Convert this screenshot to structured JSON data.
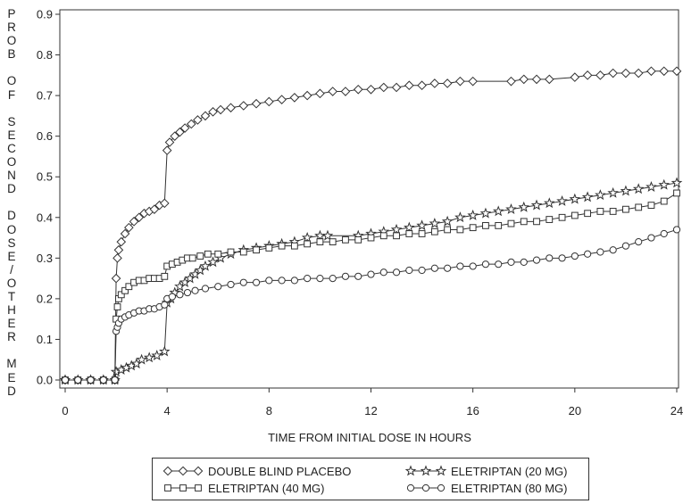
{
  "chart_data": {
    "type": "line",
    "title": "",
    "xlabel": "TIME FROM INITIAL DOSE IN HOURS",
    "ylabel": "PROB OF SECOND DOSE/OTHER MED",
    "ylabel_letters": [
      "P",
      "R",
      "O",
      "B",
      "",
      "O",
      "F",
      "",
      "S",
      "E",
      "C",
      "O",
      "N",
      "D",
      "",
      "D",
      "O",
      "S",
      "E",
      "/",
      "O",
      "T",
      "H",
      "E",
      "R",
      "",
      "M",
      "E",
      "D"
    ],
    "xlim": [
      0,
      24
    ],
    "ylim": [
      0,
      0.9
    ],
    "xticks": [
      0,
      4,
      8,
      12,
      16,
      20,
      24
    ],
    "yticks": [
      0.0,
      0.1,
      0.2,
      0.3,
      0.4,
      0.5,
      0.6,
      0.7,
      0.8,
      0.9
    ],
    "ytick_labels": [
      "0.0",
      "0.1",
      "0.2",
      "0.3",
      "0.4",
      "0.5",
      "0.6",
      "0.7",
      "0.8",
      "0.9"
    ],
    "grid": false,
    "legend_position": "bottom",
    "series": [
      {
        "name": "DOUBLE BLIND PLACEBO",
        "marker": "diamond",
        "points": [
          [
            0,
            0.0
          ],
          [
            0.5,
            0.0
          ],
          [
            1.0,
            0.0
          ],
          [
            1.5,
            0.0
          ],
          [
            1.95,
            0.0
          ],
          [
            2.0,
            0.25
          ],
          [
            2.05,
            0.3
          ],
          [
            2.1,
            0.32
          ],
          [
            2.2,
            0.34
          ],
          [
            2.35,
            0.36
          ],
          [
            2.5,
            0.375
          ],
          [
            2.7,
            0.39
          ],
          [
            2.9,
            0.4
          ],
          [
            3.1,
            0.41
          ],
          [
            3.3,
            0.415
          ],
          [
            3.5,
            0.42
          ],
          [
            3.7,
            0.43
          ],
          [
            3.9,
            0.435
          ],
          [
            4.0,
            0.565
          ],
          [
            4.1,
            0.585
          ],
          [
            4.3,
            0.6
          ],
          [
            4.5,
            0.61
          ],
          [
            4.7,
            0.62
          ],
          [
            4.95,
            0.63
          ],
          [
            5.2,
            0.64
          ],
          [
            5.5,
            0.65
          ],
          [
            5.8,
            0.66
          ],
          [
            6.1,
            0.665
          ],
          [
            6.5,
            0.67
          ],
          [
            7.0,
            0.675
          ],
          [
            7.5,
            0.68
          ],
          [
            8.0,
            0.685
          ],
          [
            8.5,
            0.69
          ],
          [
            9.0,
            0.695
          ],
          [
            9.5,
            0.7
          ],
          [
            10.0,
            0.705
          ],
          [
            10.5,
            0.71
          ],
          [
            11.0,
            0.71
          ],
          [
            11.5,
            0.715
          ],
          [
            12.0,
            0.715
          ],
          [
            12.5,
            0.72
          ],
          [
            13.0,
            0.72
          ],
          [
            13.5,
            0.725
          ],
          [
            14.0,
            0.725
          ],
          [
            14.5,
            0.73
          ],
          [
            15.0,
            0.73
          ],
          [
            15.5,
            0.735
          ],
          [
            16.0,
            0.735
          ],
          [
            17.5,
            0.735
          ],
          [
            18.0,
            0.74
          ],
          [
            18.5,
            0.74
          ],
          [
            19.0,
            0.74
          ],
          [
            20.0,
            0.745
          ],
          [
            20.5,
            0.75
          ],
          [
            21.0,
            0.75
          ],
          [
            21.5,
            0.755
          ],
          [
            22.0,
            0.755
          ],
          [
            22.5,
            0.755
          ],
          [
            23.0,
            0.76
          ],
          [
            23.5,
            0.76
          ],
          [
            24.0,
            0.76
          ]
        ]
      },
      {
        "name": "ELETRIPTAN (20 MG)",
        "marker": "star",
        "points": [
          [
            0,
            0.0
          ],
          [
            0.5,
            0.0
          ],
          [
            1.0,
            0.0
          ],
          [
            1.5,
            0.0
          ],
          [
            1.95,
            0.0
          ],
          [
            2.0,
            0.02
          ],
          [
            2.2,
            0.025
          ],
          [
            2.4,
            0.03
          ],
          [
            2.6,
            0.035
          ],
          [
            2.8,
            0.04
          ],
          [
            3.0,
            0.05
          ],
          [
            3.3,
            0.055
          ],
          [
            3.6,
            0.06
          ],
          [
            3.9,
            0.07
          ],
          [
            4.0,
            0.19
          ],
          [
            4.15,
            0.2
          ],
          [
            4.3,
            0.215
          ],
          [
            4.5,
            0.23
          ],
          [
            4.7,
            0.24
          ],
          [
            4.9,
            0.25
          ],
          [
            5.1,
            0.26
          ],
          [
            5.3,
            0.27
          ],
          [
            5.5,
            0.28
          ],
          [
            5.8,
            0.29
          ],
          [
            6.1,
            0.3
          ],
          [
            6.5,
            0.31
          ],
          [
            7.0,
            0.32
          ],
          [
            7.5,
            0.325
          ],
          [
            8.0,
            0.33
          ],
          [
            8.5,
            0.335
          ],
          [
            9.0,
            0.34
          ],
          [
            9.5,
            0.35
          ],
          [
            10.0,
            0.355
          ],
          [
            10.3,
            0.355
          ],
          [
            11.5,
            0.355
          ],
          [
            12.0,
            0.36
          ],
          [
            12.5,
            0.365
          ],
          [
            13.0,
            0.37
          ],
          [
            13.5,
            0.375
          ],
          [
            14.0,
            0.38
          ],
          [
            14.5,
            0.385
          ],
          [
            15.0,
            0.39
          ],
          [
            15.5,
            0.4
          ],
          [
            16.0,
            0.405
          ],
          [
            16.5,
            0.41
          ],
          [
            17.0,
            0.415
          ],
          [
            17.5,
            0.42
          ],
          [
            18.0,
            0.425
          ],
          [
            18.5,
            0.43
          ],
          [
            19.0,
            0.435
          ],
          [
            19.5,
            0.44
          ],
          [
            20.0,
            0.445
          ],
          [
            20.5,
            0.45
          ],
          [
            21.0,
            0.455
          ],
          [
            21.5,
            0.46
          ],
          [
            22.0,
            0.465
          ],
          [
            22.5,
            0.47
          ],
          [
            23.0,
            0.475
          ],
          [
            23.5,
            0.48
          ],
          [
            24.0,
            0.485
          ]
        ]
      },
      {
        "name": "ELETRIPTAN (40 MG)",
        "marker": "square",
        "points": [
          [
            0,
            0.0
          ],
          [
            0.5,
            0.0
          ],
          [
            1.0,
            0.0
          ],
          [
            1.5,
            0.0
          ],
          [
            1.95,
            0.0
          ],
          [
            2.0,
            0.15
          ],
          [
            2.05,
            0.18
          ],
          [
            2.1,
            0.2
          ],
          [
            2.2,
            0.21
          ],
          [
            2.35,
            0.22
          ],
          [
            2.5,
            0.23
          ],
          [
            2.7,
            0.24
          ],
          [
            2.9,
            0.245
          ],
          [
            3.1,
            0.245
          ],
          [
            3.3,
            0.25
          ],
          [
            3.5,
            0.25
          ],
          [
            3.7,
            0.25
          ],
          [
            3.9,
            0.255
          ],
          [
            4.0,
            0.28
          ],
          [
            4.2,
            0.285
          ],
          [
            4.4,
            0.29
          ],
          [
            4.6,
            0.295
          ],
          [
            4.8,
            0.3
          ],
          [
            5.0,
            0.3
          ],
          [
            5.3,
            0.305
          ],
          [
            5.6,
            0.31
          ],
          [
            6.0,
            0.31
          ],
          [
            6.5,
            0.315
          ],
          [
            7.0,
            0.315
          ],
          [
            7.5,
            0.32
          ],
          [
            8.0,
            0.325
          ],
          [
            8.5,
            0.33
          ],
          [
            9.0,
            0.33
          ],
          [
            9.5,
            0.335
          ],
          [
            10.0,
            0.34
          ],
          [
            10.5,
            0.34
          ],
          [
            11.0,
            0.345
          ],
          [
            11.5,
            0.345
          ],
          [
            12.0,
            0.35
          ],
          [
            12.5,
            0.355
          ],
          [
            13.0,
            0.355
          ],
          [
            13.5,
            0.36
          ],
          [
            14.0,
            0.36
          ],
          [
            14.5,
            0.365
          ],
          [
            15.0,
            0.37
          ],
          [
            15.5,
            0.37
          ],
          [
            16.0,
            0.375
          ],
          [
            16.5,
            0.38
          ],
          [
            17.0,
            0.38
          ],
          [
            17.5,
            0.385
          ],
          [
            18.0,
            0.39
          ],
          [
            18.5,
            0.39
          ],
          [
            19.0,
            0.395
          ],
          [
            19.5,
            0.4
          ],
          [
            20.0,
            0.405
          ],
          [
            20.5,
            0.41
          ],
          [
            21.0,
            0.415
          ],
          [
            21.5,
            0.415
          ],
          [
            22.0,
            0.42
          ],
          [
            22.5,
            0.425
          ],
          [
            23.0,
            0.43
          ],
          [
            23.5,
            0.44
          ],
          [
            24.0,
            0.46
          ]
        ]
      },
      {
        "name": "ELETRIPTAN (80 MG)",
        "marker": "circle",
        "points": [
          [
            0,
            0.0
          ],
          [
            0.5,
            0.0
          ],
          [
            1.0,
            0.0
          ],
          [
            1.5,
            0.0
          ],
          [
            1.95,
            0.0
          ],
          [
            2.0,
            0.12
          ],
          [
            2.05,
            0.13
          ],
          [
            2.1,
            0.14
          ],
          [
            2.2,
            0.15
          ],
          [
            2.35,
            0.155
          ],
          [
            2.5,
            0.16
          ],
          [
            2.7,
            0.165
          ],
          [
            2.9,
            0.17
          ],
          [
            3.1,
            0.17
          ],
          [
            3.3,
            0.175
          ],
          [
            3.5,
            0.175
          ],
          [
            3.7,
            0.18
          ],
          [
            3.9,
            0.185
          ],
          [
            4.0,
            0.2
          ],
          [
            4.2,
            0.205
          ],
          [
            4.5,
            0.21
          ],
          [
            4.8,
            0.215
          ],
          [
            5.1,
            0.22
          ],
          [
            5.5,
            0.225
          ],
          [
            6.0,
            0.23
          ],
          [
            6.5,
            0.235
          ],
          [
            7.0,
            0.24
          ],
          [
            7.5,
            0.24
          ],
          [
            8.0,
            0.245
          ],
          [
            8.5,
            0.245
          ],
          [
            9.0,
            0.245
          ],
          [
            9.5,
            0.25
          ],
          [
            10.0,
            0.25
          ],
          [
            10.5,
            0.25
          ],
          [
            11.0,
            0.255
          ],
          [
            11.5,
            0.255
          ],
          [
            12.0,
            0.26
          ],
          [
            12.5,
            0.265
          ],
          [
            13.0,
            0.265
          ],
          [
            13.5,
            0.27
          ],
          [
            14.0,
            0.27
          ],
          [
            14.5,
            0.275
          ],
          [
            15.0,
            0.275
          ],
          [
            15.5,
            0.28
          ],
          [
            16.0,
            0.28
          ],
          [
            16.5,
            0.285
          ],
          [
            17.0,
            0.285
          ],
          [
            17.5,
            0.29
          ],
          [
            18.0,
            0.29
          ],
          [
            18.5,
            0.295
          ],
          [
            19.0,
            0.3
          ],
          [
            19.5,
            0.3
          ],
          [
            20.0,
            0.305
          ],
          [
            20.5,
            0.31
          ],
          [
            21.0,
            0.315
          ],
          [
            21.5,
            0.32
          ],
          [
            22.0,
            0.33
          ],
          [
            22.5,
            0.34
          ],
          [
            23.0,
            0.35
          ],
          [
            23.5,
            0.36
          ],
          [
            24.0,
            0.37
          ]
        ]
      }
    ]
  },
  "legend": {
    "items": [
      {
        "label": "DOUBLE BLIND PLACEBO",
        "marker": "diamond"
      },
      {
        "label": "ELETRIPTAN (20 MG)",
        "marker": "star"
      },
      {
        "label": "ELETRIPTAN (40 MG)",
        "marker": "square"
      },
      {
        "label": "ELETRIPTAN (80 MG)",
        "marker": "circle"
      }
    ]
  },
  "colors": {
    "line": "#333333",
    "marker_fill": "#ffffff",
    "axis": "#333333"
  }
}
